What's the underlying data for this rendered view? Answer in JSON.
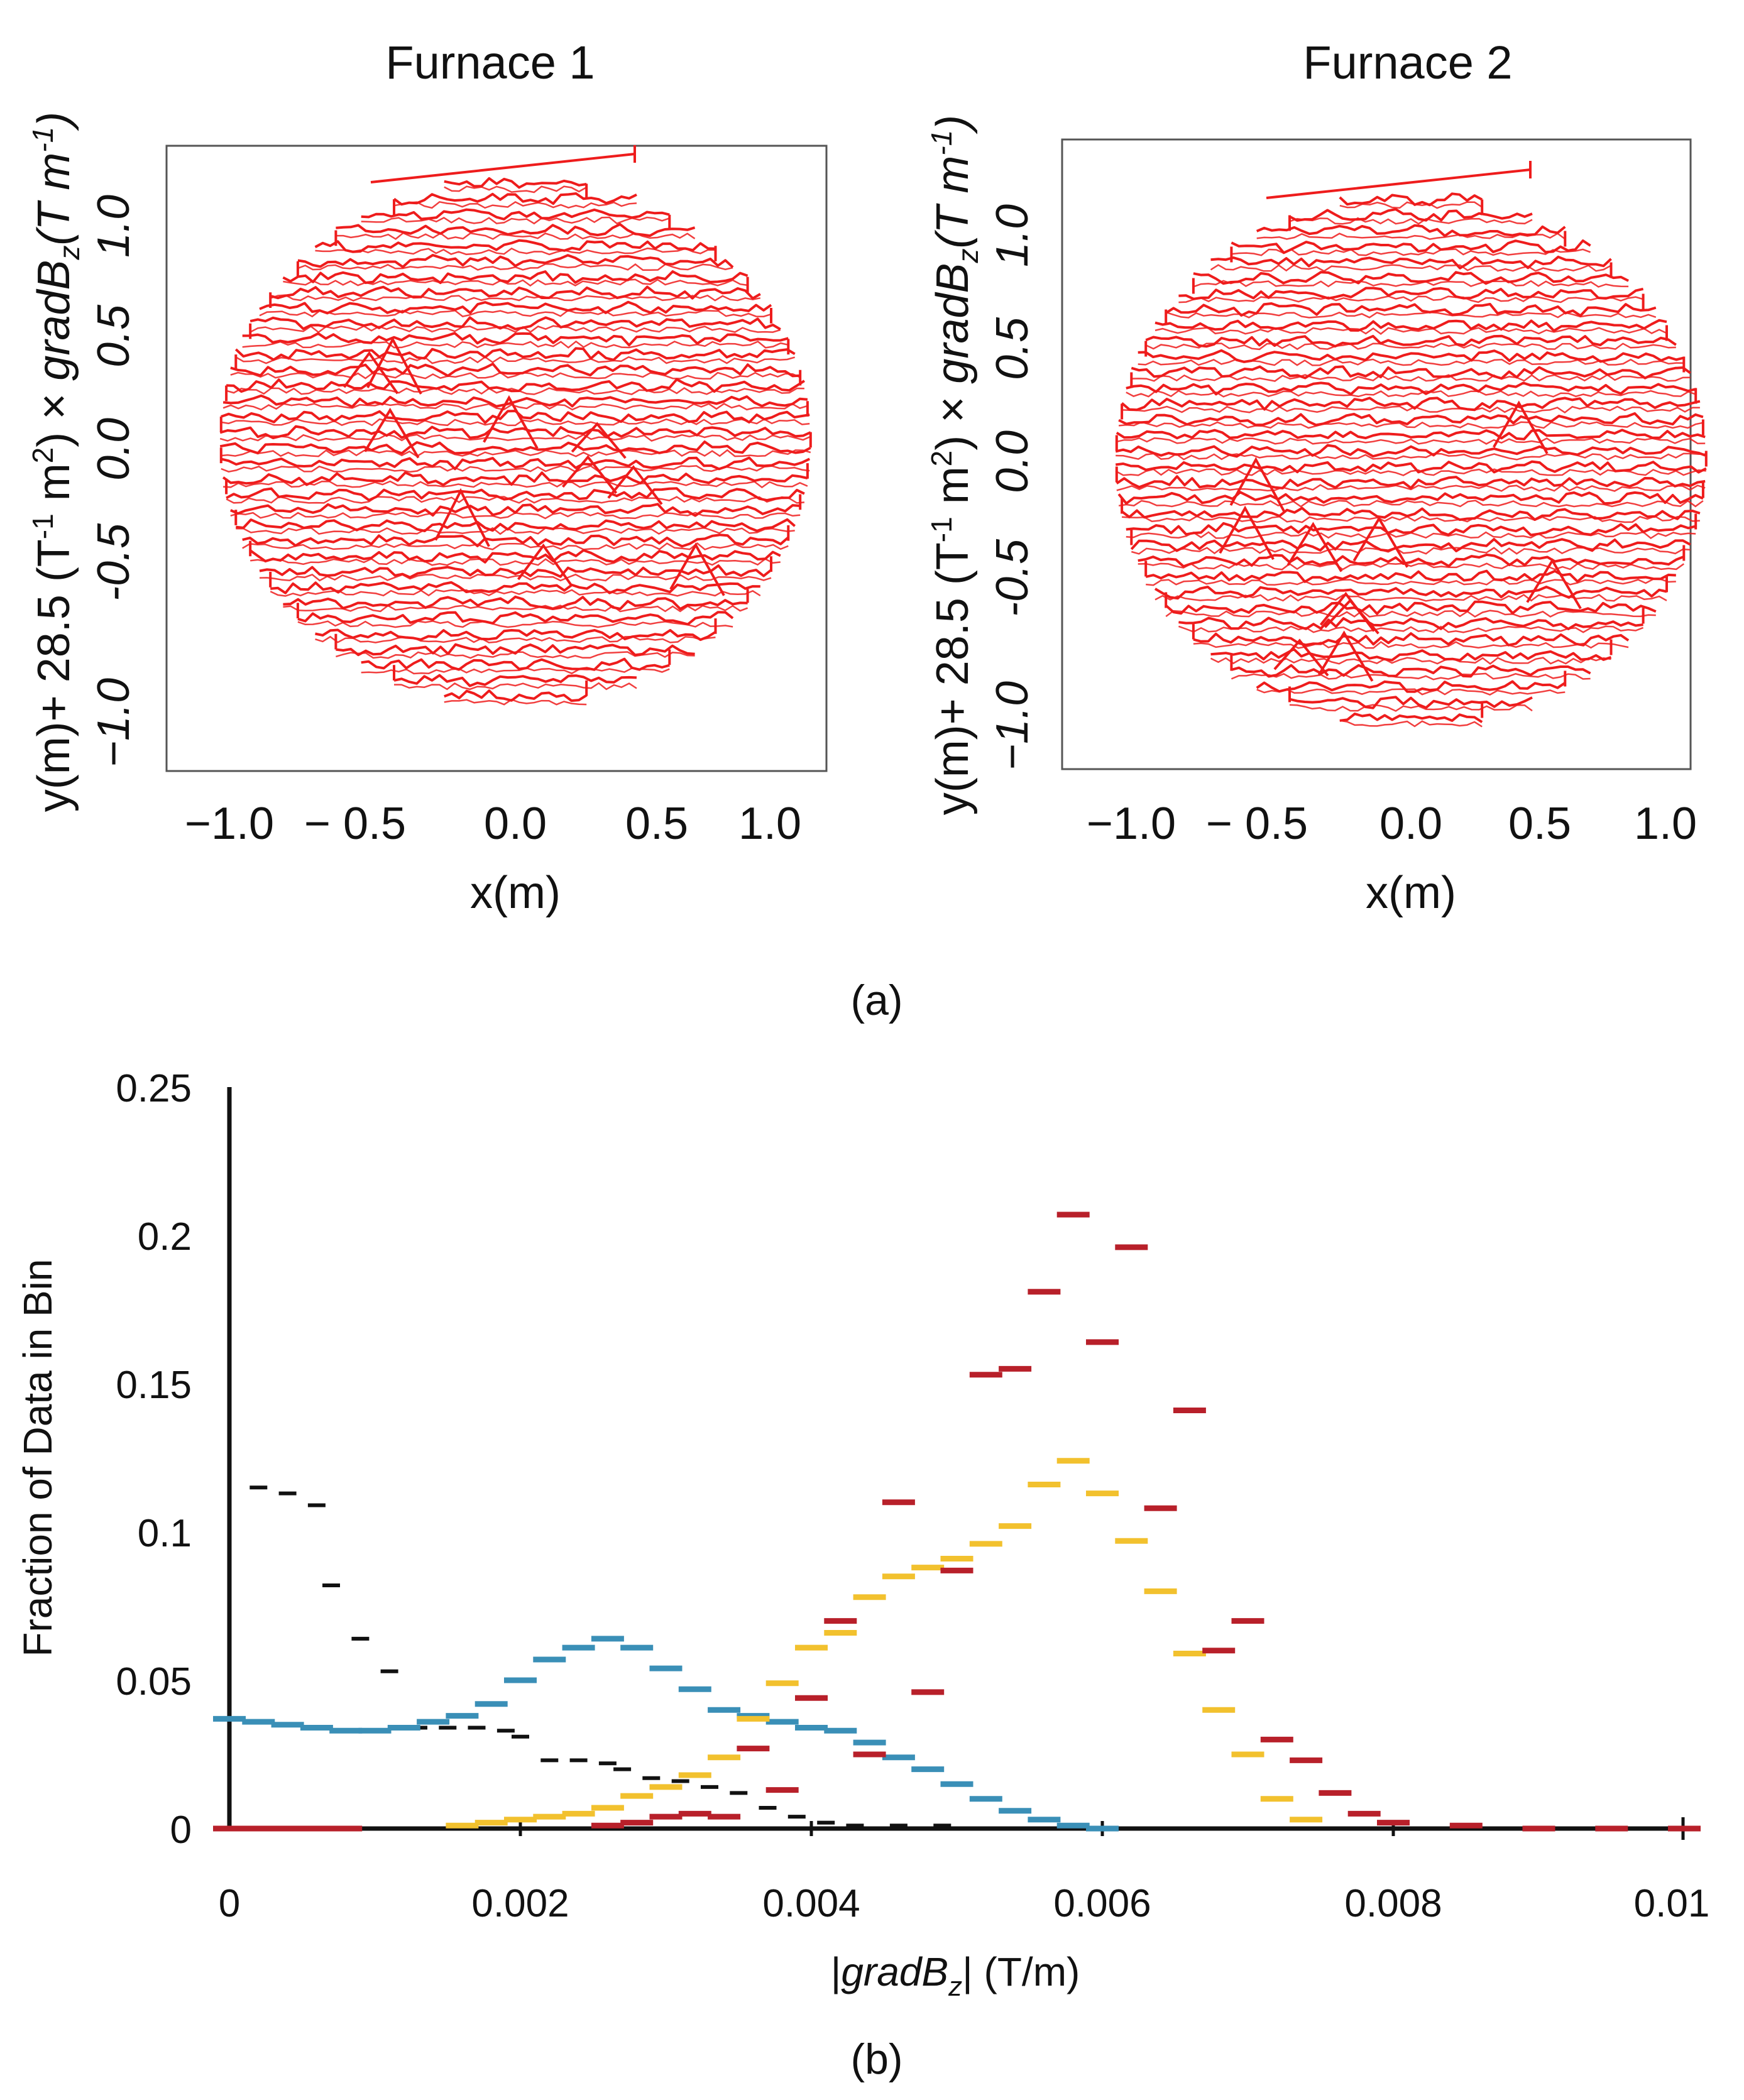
{
  "panel_a_label": "(a)",
  "panel_b_label": "(b)",
  "chart_data": [
    {
      "type": "line",
      "title": "Furnace 1",
      "xlabel": "x(m)",
      "ylabel_parts": [
        "y(m)+ 28.5 (T",
        "-1",
        " m",
        "2",
        ") × ",
        "gradB",
        "z",
        "(T m",
        "-1",
        ")"
      ],
      "x_ticks": [
        "−1.0",
        "− 0.5",
        "0.0",
        "0.5",
        "1.0"
      ],
      "y_ticks": [
        "−1.0",
        "-0.5",
        "0.0",
        "0.5",
        "1.0"
      ],
      "xlim": [
        -1.2,
        1.2
      ],
      "ylim": [
        -1.3,
        1.25
      ],
      "scan_rows": 34,
      "scan_radius_m": 1.05,
      "color": "#ee1c1c",
      "seed": 11
    },
    {
      "type": "line",
      "title": "Furnace 2",
      "xlabel": "x(m)",
      "ylabel_parts": [
        "y(m)+ 28.5 (T",
        "-1",
        " m",
        "2",
        ") × ",
        "gradB",
        "z",
        "(T m",
        "-1",
        ")"
      ],
      "x_ticks": [
        "−1.0",
        "− 0.5",
        "0.0",
        "0.5",
        "1.0"
      ],
      "y_ticks": [
        "−1.0",
        "-0.5",
        "0.0",
        "0.5",
        "1.0"
      ],
      "xlim": [
        -1.2,
        1.2
      ],
      "ylim": [
        -1.3,
        1.25
      ],
      "scan_rows": 34,
      "scan_radius_m": 1.05,
      "color": "#ee1c1c",
      "seed": 29
    },
    {
      "type": "scatter",
      "marker": "dash",
      "xlabel_parts": [
        "|",
        "gradB",
        "z",
        "|  (T/m)"
      ],
      "ylabel": "Fraction of Data in Bin",
      "x_ticks": [
        "0",
        "0.002",
        "0.004",
        "0.006",
        "0.008",
        "0.01"
      ],
      "y_ticks": [
        "0",
        "0.05",
        "0.1",
        "0.15",
        "0.2",
        "0.25"
      ],
      "xlim": [
        0,
        0.01
      ],
      "ylim": [
        0,
        0.25
      ],
      "series": [
        {
          "name": "black",
          "color": "#111111",
          "x": [
            0.0002,
            0.0004,
            0.0006,
            0.0007,
            0.0009,
            0.0011,
            0.0013,
            0.0015,
            0.0017,
            0.0019,
            0.002,
            0.0022,
            0.0024,
            0.0026,
            0.0027,
            0.0029,
            0.0031,
            0.0033,
            0.0035,
            0.0037,
            0.0039,
            0.0041,
            0.0043,
            0.0046,
            0.0049
          ],
          "y": [
            0.115,
            0.113,
            0.109,
            0.082,
            0.064,
            0.053,
            0.034,
            0.034,
            0.034,
            0.033,
            0.031,
            0.023,
            0.023,
            0.022,
            0.02,
            0.017,
            0.016,
            0.014,
            0.012,
            0.007,
            0.004,
            0.002,
            0.001,
            0.001,
            0.001
          ]
        },
        {
          "name": "blue",
          "color": "#3a8fb7",
          "x": [
            0.0,
            0.0002,
            0.0004,
            0.0006,
            0.0008,
            0.001,
            0.0012,
            0.0014,
            0.0016,
            0.0018,
            0.002,
            0.0022,
            0.0024,
            0.0026,
            0.0028,
            0.003,
            0.0032,
            0.0034,
            0.0036,
            0.0038,
            0.004,
            0.0042,
            0.0044,
            0.0046,
            0.0048,
            0.005,
            0.0052,
            0.0054,
            0.0056,
            0.0058,
            0.006
          ],
          "y": [
            0.037,
            0.036,
            0.035,
            0.034,
            0.033,
            0.033,
            0.034,
            0.036,
            0.038,
            0.042,
            0.05,
            0.057,
            0.061,
            0.064,
            0.061,
            0.054,
            0.047,
            0.04,
            0.038,
            0.036,
            0.034,
            0.033,
            0.029,
            0.024,
            0.02,
            0.015,
            0.01,
            0.006,
            0.003,
            0.001,
            0.0
          ]
        },
        {
          "name": "yellow",
          "color": "#f2c12e",
          "x": [
            0.0016,
            0.0018,
            0.002,
            0.0022,
            0.0024,
            0.0026,
            0.0028,
            0.003,
            0.0032,
            0.0034,
            0.0036,
            0.0038,
            0.004,
            0.0042,
            0.0044,
            0.0046,
            0.0048,
            0.005,
            0.0052,
            0.0054,
            0.0056,
            0.0058,
            0.006,
            0.0062,
            0.0064,
            0.0066,
            0.0068,
            0.007,
            0.0072,
            0.0074
          ],
          "y": [
            0.001,
            0.002,
            0.003,
            0.004,
            0.005,
            0.007,
            0.011,
            0.014,
            0.018,
            0.024,
            0.037,
            0.049,
            0.061,
            0.066,
            0.078,
            0.085,
            0.088,
            0.091,
            0.096,
            0.102,
            0.116,
            0.124,
            0.113,
            0.097,
            0.08,
            0.059,
            0.04,
            0.025,
            0.01,
            0.003
          ]
        },
        {
          "name": "red",
          "color": "#b8202a",
          "x": [
            0.0,
            0.0002,
            0.0004,
            0.0006,
            0.0008,
            0.0026,
            0.0028,
            0.003,
            0.0032,
            0.0034,
            0.0036,
            0.0038,
            0.004,
            0.0042,
            0.0044,
            0.0046,
            0.0048,
            0.005,
            0.0052,
            0.0054,
            0.0056,
            0.0058,
            0.006,
            0.0062,
            0.0064,
            0.0066,
            0.0068,
            0.007,
            0.0072,
            0.0074,
            0.0076,
            0.0078,
            0.008,
            0.0085,
            0.009,
            0.0095,
            0.01
          ],
          "y": [
            0.0,
            0.0,
            0.0,
            0.0,
            0.0,
            0.001,
            0.002,
            0.004,
            0.005,
            0.004,
            0.027,
            0.013,
            0.044,
            0.07,
            0.025,
            0.11,
            0.046,
            0.087,
            0.153,
            0.155,
            0.181,
            0.207,
            0.164,
            0.196,
            0.108,
            0.141,
            0.06,
            0.07,
            0.03,
            0.023,
            0.012,
            0.005,
            0.002,
            0.001,
            0.0,
            0.0,
            0.0
          ]
        }
      ]
    }
  ]
}
